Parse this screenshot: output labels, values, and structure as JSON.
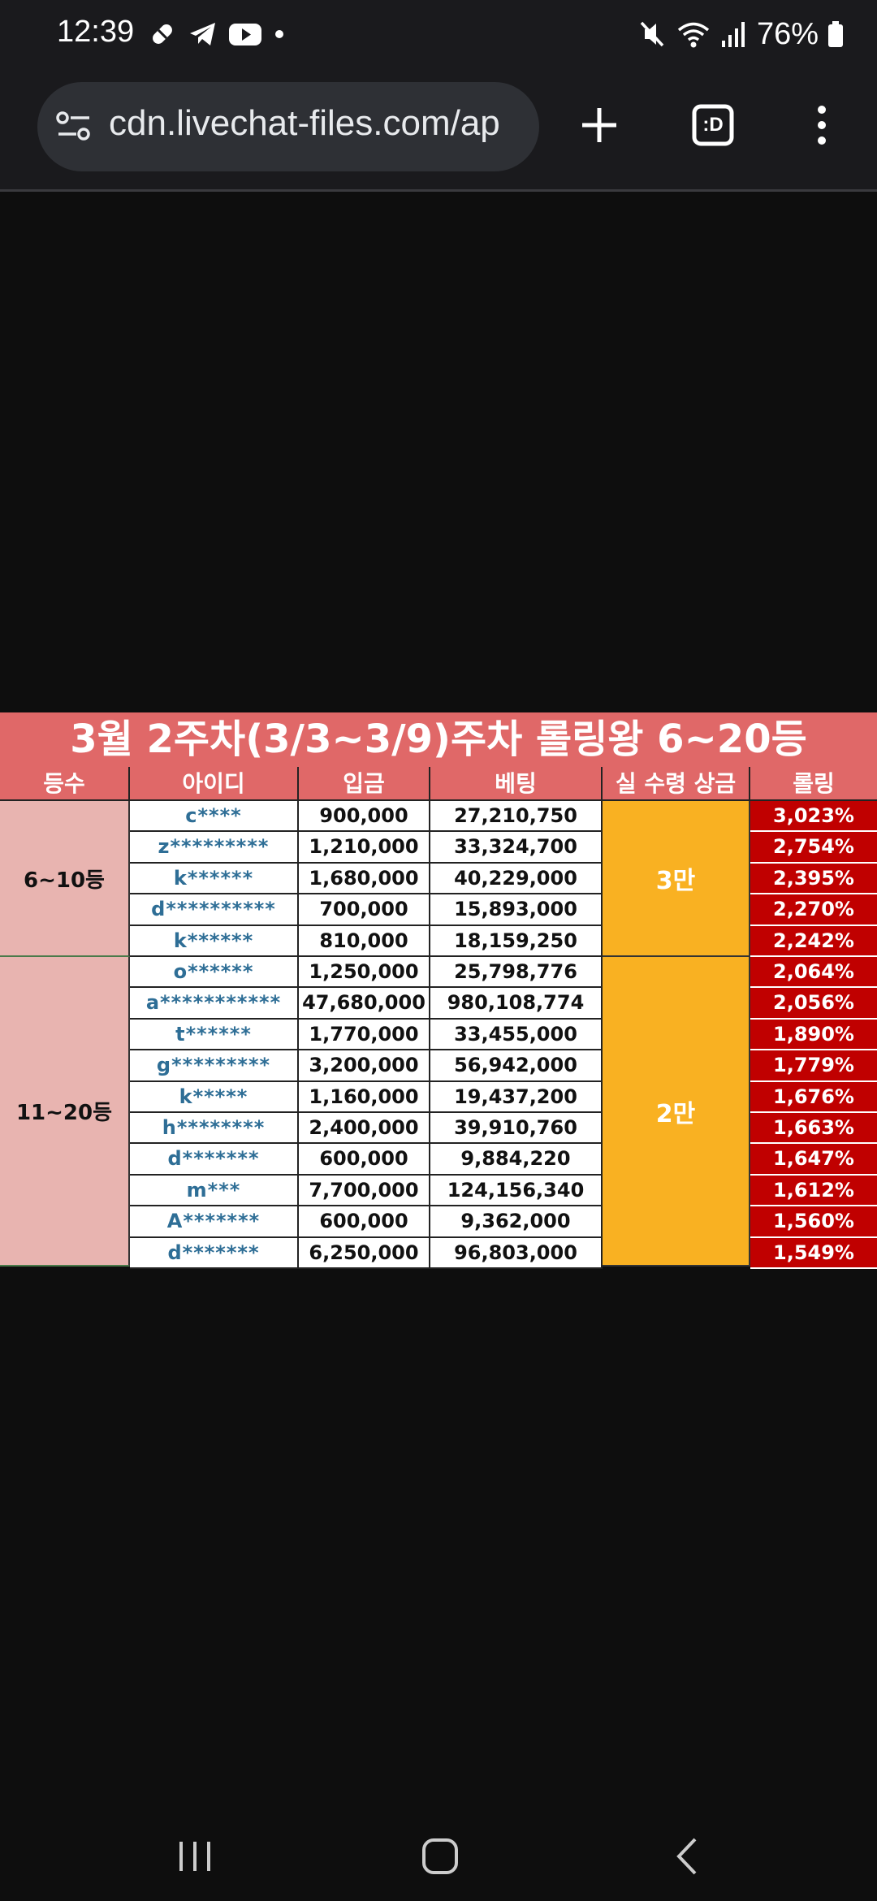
{
  "status": {
    "time": "12:39",
    "battery": "76%",
    "left_icons": [
      "pill-icon",
      "telegram-icon",
      "youtube-icon",
      "dot-icon"
    ],
    "right_icons": [
      "mute-icon",
      "wifi-icon",
      "signal-icon",
      "battery-icon"
    ]
  },
  "browser": {
    "url": "cdn.livechat-files.com/ap",
    "tab_label": ":D"
  },
  "table": {
    "title": "3월 2주차(3/3~3/9)주차 롤링왕 6~20등",
    "headers": [
      "등수",
      "아이디",
      "입금",
      "베팅",
      "실 수령 상금",
      "롤링"
    ],
    "groups": [
      {
        "rank": "6~10등",
        "prize": "3만"
      },
      {
        "rank": "11~20등",
        "prize": "2만"
      }
    ],
    "rows": [
      {
        "id": "c****",
        "deposit": "900,000",
        "bet": "27,210,750",
        "rolling": "3,023%"
      },
      {
        "id": "z*********",
        "deposit": "1,210,000",
        "bet": "33,324,700",
        "rolling": "2,754%"
      },
      {
        "id": "k******",
        "deposit": "1,680,000",
        "bet": "40,229,000",
        "rolling": "2,395%"
      },
      {
        "id": "d**********",
        "deposit": "700,000",
        "bet": "15,893,000",
        "rolling": "2,270%"
      },
      {
        "id": "k******",
        "deposit": "810,000",
        "bet": "18,159,250",
        "rolling": "2,242%"
      },
      {
        "id": "o******",
        "deposit": "1,250,000",
        "bet": "25,798,776",
        "rolling": "2,064%"
      },
      {
        "id": "a***********",
        "deposit": "47,680,000",
        "bet": "980,108,774",
        "rolling": "2,056%"
      },
      {
        "id": "t******",
        "deposit": "1,770,000",
        "bet": "33,455,000",
        "rolling": "1,890%"
      },
      {
        "id": "g*********",
        "deposit": "3,200,000",
        "bet": "56,942,000",
        "rolling": "1,779%"
      },
      {
        "id": "k*****",
        "deposit": "1,160,000",
        "bet": "19,437,200",
        "rolling": "1,676%"
      },
      {
        "id": "h********",
        "deposit": "2,400,000",
        "bet": "39,910,760",
        "rolling": "1,663%"
      },
      {
        "id": "d*******",
        "deposit": "600,000",
        "bet": "9,884,220",
        "rolling": "1,647%"
      },
      {
        "id": "m***",
        "deposit": "7,700,000",
        "bet": "124,156,340",
        "rolling": "1,612%"
      },
      {
        "id": "A*******",
        "deposit": "600,000",
        "bet": "9,362,000",
        "rolling": "1,560%"
      },
      {
        "id": "d*******",
        "deposit": "6,250,000",
        "bet": "96,803,000",
        "rolling": "1,549%"
      }
    ]
  },
  "colors": {
    "title_bg": "#e06868",
    "rank_bg": "#e8b4b0",
    "prize_bg": "#f9b122",
    "rolling_bg": "#c00000",
    "id_text": "#2e6e96"
  }
}
